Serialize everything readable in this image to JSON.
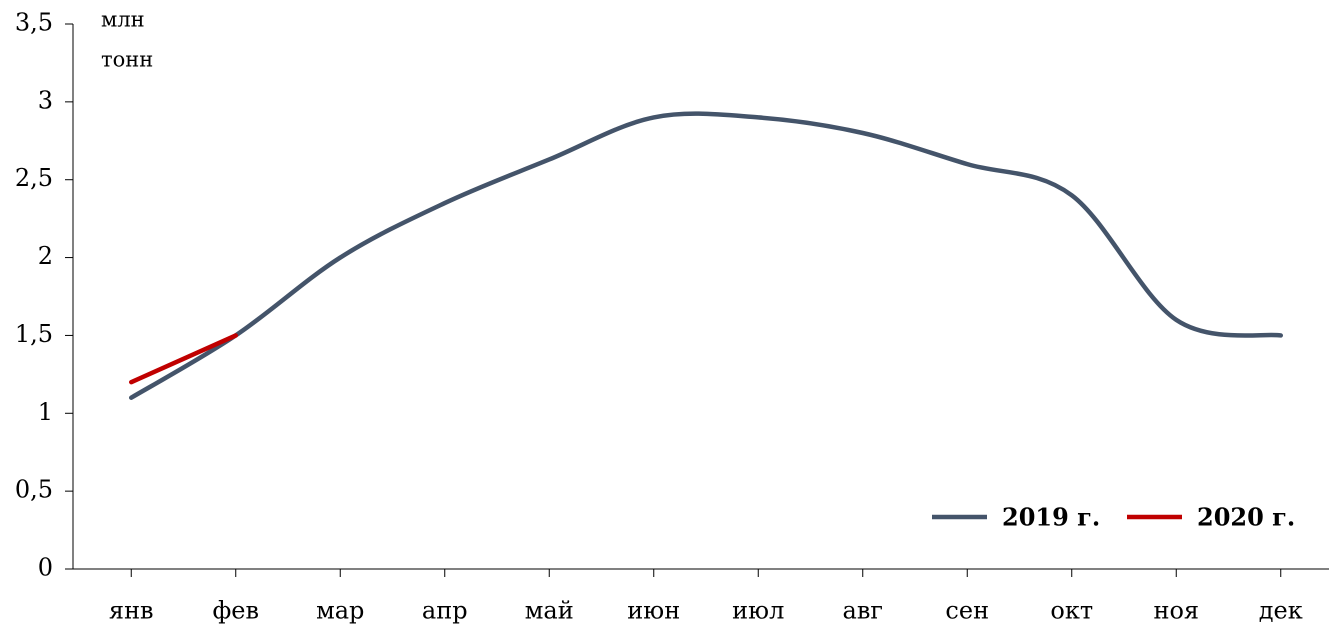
{
  "chart_data": {
    "type": "line",
    "y_label": [
      "млн",
      "тонн"
    ],
    "categories": [
      "янв",
      "фев",
      "мар",
      "апр",
      "май",
      "июн",
      "июл",
      "авг",
      "сен",
      "окт",
      "ноя",
      "дек"
    ],
    "series": [
      {
        "name": "2019 г.",
        "color": "#44546a",
        "values": [
          1.1,
          1.5,
          2.0,
          2.35,
          2.63,
          2.9,
          2.9,
          2.8,
          2.6,
          2.4,
          1.6,
          1.5
        ]
      },
      {
        "name": "2020 г.",
        "color": "#c00000",
        "values": [
          1.2,
          1.5,
          null,
          null,
          null,
          null,
          null,
          null,
          null,
          null,
          null,
          null
        ]
      }
    ],
    "ylim": [
      0,
      3.5
    ],
    "yticks": [
      0,
      {
        "value": 0.5,
        "label": "0,5"
      },
      1,
      {
        "value": 1.5,
        "label": "1,5"
      },
      2,
      {
        "value": 2.5,
        "label": "2,5"
      },
      3,
      {
        "value": 3.5,
        "label": "3,5"
      }
    ],
    "smooth": true,
    "legend": "lower right"
  }
}
